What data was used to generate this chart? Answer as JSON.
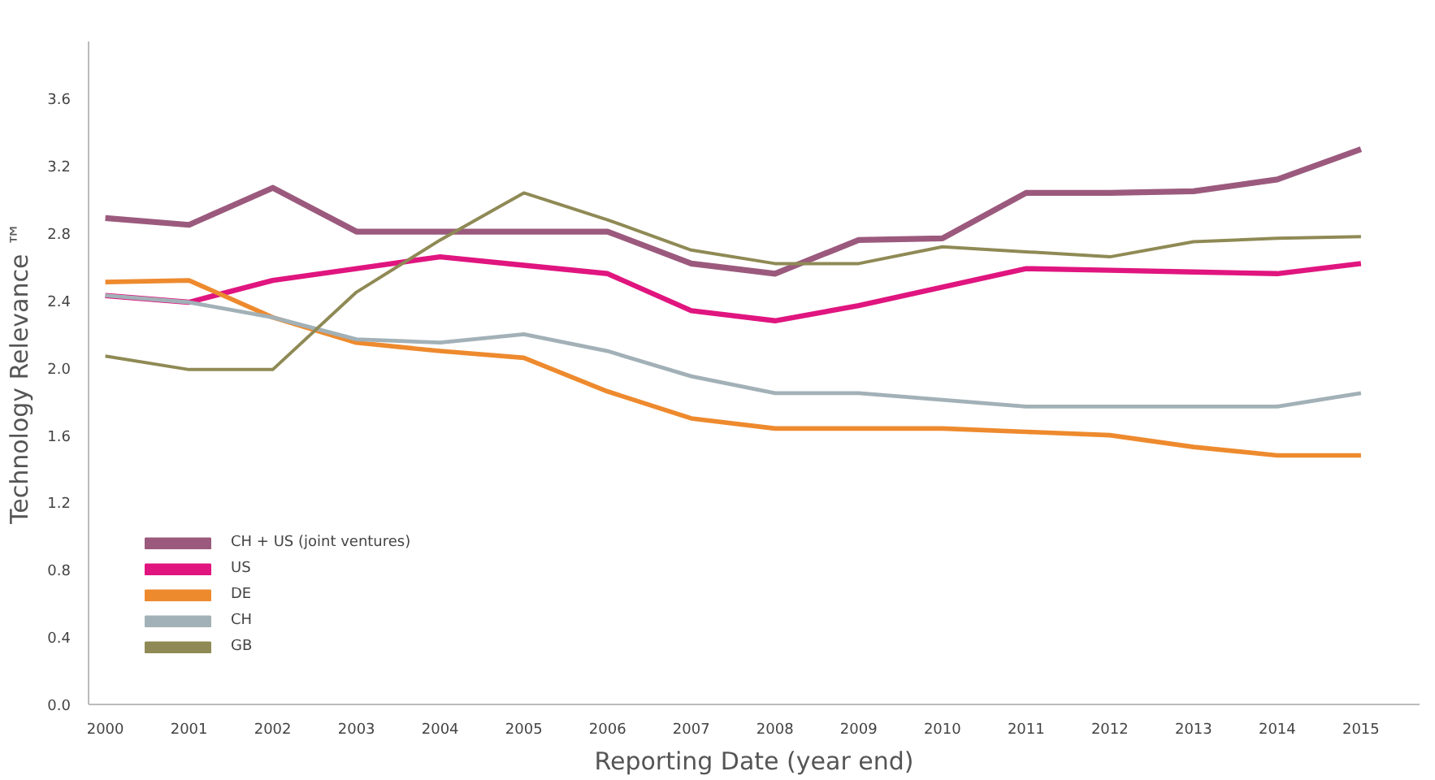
{
  "chart_data": {
    "type": "line",
    "xlabel": "Reporting Date (year end)",
    "ylabel": "Technology Relevance ™",
    "x": [
      2000,
      2001,
      2002,
      2003,
      2004,
      2005,
      2006,
      2007,
      2008,
      2009,
      2010,
      2011,
      2012,
      2013,
      2014,
      2015
    ],
    "series": [
      {
        "name": "CH + US (joint ventures)",
        "color": "#9b5a7d",
        "values": [
          2.89,
          2.85,
          3.07,
          2.81,
          2.81,
          2.81,
          2.81,
          2.62,
          2.56,
          2.76,
          2.77,
          3.04,
          3.04,
          3.05,
          3.12,
          3.3
        ]
      },
      {
        "name": "US",
        "color": "#e0157f",
        "values": [
          2.43,
          2.39,
          2.52,
          2.59,
          2.66,
          2.61,
          2.56,
          2.34,
          2.28,
          2.37,
          2.48,
          2.59,
          2.58,
          2.57,
          2.56,
          2.62
        ]
      },
      {
        "name": "DE",
        "color": "#ee8a2e",
        "values": [
          2.51,
          2.52,
          2.3,
          2.15,
          2.1,
          2.06,
          1.86,
          1.7,
          1.64,
          1.64,
          1.64,
          1.62,
          1.6,
          1.53,
          1.48,
          1.48
        ]
      },
      {
        "name": "CH",
        "color": "#a2b1b7",
        "values": [
          2.43,
          2.39,
          2.3,
          2.17,
          2.15,
          2.2,
          2.1,
          1.95,
          1.85,
          1.85,
          1.81,
          1.77,
          1.77,
          1.77,
          1.77,
          1.85
        ]
      },
      {
        "name": "GB",
        "color": "#8f8a55",
        "values": [
          2.07,
          1.99,
          1.99,
          2.45,
          2.76,
          3.04,
          2.88,
          2.7,
          2.62,
          2.62,
          2.72,
          2.69,
          2.66,
          2.75,
          2.77,
          2.78
        ]
      }
    ],
    "xlim": [
      1999.8,
      2015.7
    ],
    "xticks": [
      2000,
      2001,
      2002,
      2003,
      2004,
      2005,
      2006,
      2007,
      2008,
      2009,
      2010,
      2011,
      2012,
      2013,
      2014,
      2015
    ],
    "ylim": [
      0,
      3.94
    ],
    "yticks": [
      {
        "value": 0,
        "label": "0.0"
      },
      {
        "value": 0.4,
        "label": "0.4"
      },
      {
        "value": 0.8,
        "label": "0.8"
      },
      {
        "value": 1.2,
        "label": "1.2"
      },
      {
        "value": 1.6,
        "label": "1.6"
      },
      {
        "value": 2.0,
        "label": "2.0"
      },
      {
        "value": 2.4,
        "label": "2.4"
      },
      {
        "value": 2.8,
        "label": "2.8"
      },
      {
        "value": 3.2,
        "label": "3.2"
      },
      {
        "value": 3.6,
        "label": "3.6"
      }
    ],
    "grid": false,
    "legend": "bottom left",
    "marker": "none",
    "line_style": "solid"
  }
}
